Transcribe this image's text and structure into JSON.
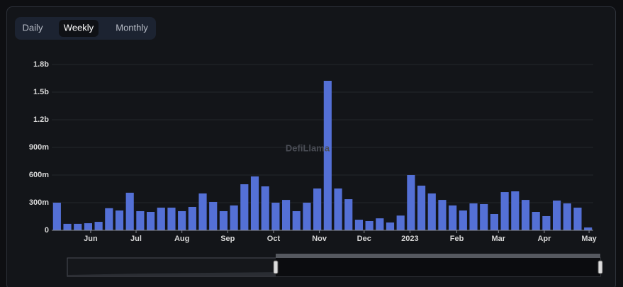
{
  "tabs": [
    "Daily",
    "Weekly",
    "Monthly"
  ],
  "active_tab": 1,
  "watermark": "DefiLlama",
  "chart_data": {
    "type": "bar",
    "color": "#5470d6",
    "grid": true,
    "categories": [
      null,
      null,
      null,
      null,
      null,
      null,
      null,
      null,
      null,
      null,
      null,
      null,
      null,
      null,
      null,
      null,
      null,
      null,
      null,
      null,
      null,
      null,
      null,
      null,
      null,
      null,
      null,
      null,
      null,
      null,
      null,
      null,
      null,
      null,
      null,
      null,
      null,
      null,
      null,
      null,
      null,
      null,
      null,
      null,
      null,
      null,
      null,
      null,
      null,
      null,
      null,
      null
    ],
    "values": [
      300000000,
      70000000,
      70000000,
      77000000,
      92000000,
      240000000,
      215000000,
      408000000,
      208000000,
      200000000,
      246000000,
      246000000,
      208000000,
      254000000,
      400000000,
      308000000,
      208000000,
      270000000,
      500000000,
      585000000,
      477000000,
      300000000,
      330000000,
      208000000,
      300000000,
      454000000,
      1623000000,
      454000000,
      338000000,
      115000000,
      100000000,
      130000000,
      85000000,
      160000000,
      600000000,
      485000000,
      400000000,
      330000000,
      270000000,
      215000000,
      292000000,
      285000000,
      177000000,
      415000000,
      423000000,
      330000000,
      200000000,
      154000000,
      323000000,
      292000000,
      246000000,
      31000000
    ],
    "xlim": [
      0,
      52
    ],
    "xticks": [
      {
        "value": 3.74,
        "label": "Jun"
      },
      {
        "value": 8.1,
        "label": "Jul"
      },
      {
        "value": 12.5,
        "label": "Aug"
      },
      {
        "value": 16.9,
        "label": "Sep"
      },
      {
        "value": 21.3,
        "label": "Oct"
      },
      {
        "value": 25.7,
        "label": "Nov"
      },
      {
        "value": 30.0,
        "label": "Dec"
      },
      {
        "value": 34.4,
        "label": "2023"
      },
      {
        "value": 38.9,
        "label": "Feb"
      },
      {
        "value": 42.9,
        "label": "Mar"
      },
      {
        "value": 47.3,
        "label": "Apr"
      },
      {
        "value": 51.6,
        "label": "May"
      }
    ],
    "ylim": [
      0,
      1800000000
    ],
    "yticks": [
      0,
      {
        "value": 300000000,
        "label": "300m"
      },
      {
        "value": 600000000,
        "label": "600m"
      },
      {
        "value": 900000000,
        "label": "900m"
      },
      {
        "value": 1200000000,
        "label": "1.2b"
      },
      {
        "value": 1500000000,
        "label": "1.5b"
      },
      {
        "value": 1800000000,
        "label": "1.8b"
      }
    ]
  }
}
